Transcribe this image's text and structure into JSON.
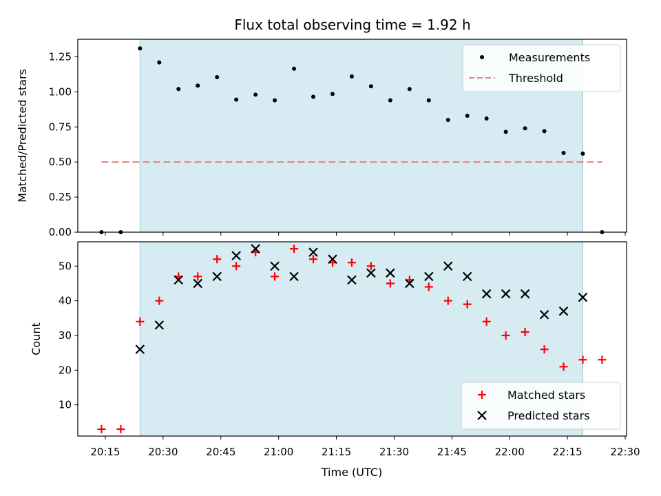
{
  "chart_data": [
    {
      "type": "scatter",
      "title": "Flux total observing time = 1.92 h",
      "xlabel": "",
      "ylabel": "Matched/Predicted stars",
      "ylim": [
        0,
        1.375
      ],
      "yticks": [
        "0.00",
        "0.25",
        "0.50",
        "0.75",
        "1.00",
        "1.25"
      ],
      "highlight_span": {
        "start": "20:24",
        "end": "22:19",
        "color": "#add8e6"
      },
      "threshold": {
        "y": 0.5,
        "x_start": "20:14",
        "x_end": "22:24",
        "color": "#f08080"
      },
      "legend_position": "upper right",
      "series": [
        {
          "name": "Measurements",
          "color": "#000000",
          "marker": "dot",
          "x": [
            "20:14",
            "20:19",
            "20:24",
            "20:29",
            "20:34",
            "20:39",
            "20:44",
            "20:49",
            "20:54",
            "20:59",
            "21:04",
            "21:09",
            "21:14",
            "21:19",
            "21:24",
            "21:29",
            "21:34",
            "21:39",
            "21:44",
            "21:49",
            "21:54",
            "21:59",
            "22:04",
            "22:09",
            "22:14",
            "22:19",
            "22:24"
          ],
          "values": [
            0,
            0,
            1.31,
            1.21,
            1.02,
            1.045,
            1.105,
            0.945,
            0.98,
            0.94,
            1.165,
            0.965,
            0.985,
            1.11,
            1.04,
            0.94,
            1.02,
            0.94,
            0.8,
            0.83,
            0.81,
            0.715,
            0.74,
            0.72,
            0.565,
            0.56,
            0
          ]
        }
      ],
      "legend": [
        {
          "label": "Measurements",
          "kind": "dot"
        },
        {
          "label": "Threshold",
          "kind": "dashed"
        }
      ]
    },
    {
      "type": "scatter",
      "xlabel": "Time (UTC)",
      "ylabel": "Count",
      "ylim": [
        1,
        57
      ],
      "yticks": [
        "10",
        "20",
        "30",
        "40",
        "50"
      ],
      "xticks": [
        "20:15",
        "20:30",
        "20:45",
        "21:00",
        "21:15",
        "21:30",
        "21:45",
        "22:00",
        "22:15",
        "22:30"
      ],
      "highlight_span": {
        "start": "20:24",
        "end": "22:19",
        "color": "#add8e6"
      },
      "legend_position": "lower right",
      "series": [
        {
          "name": "Matched stars",
          "color": "#ff0000",
          "marker": "plus",
          "x": [
            "20:14",
            "20:19",
            "20:24",
            "20:29",
            "20:34",
            "20:39",
            "20:44",
            "20:49",
            "20:54",
            "20:59",
            "21:04",
            "21:09",
            "21:14",
            "21:19",
            "21:24",
            "21:29",
            "21:34",
            "21:39",
            "21:44",
            "21:49",
            "21:54",
            "21:59",
            "22:04",
            "22:09",
            "22:14",
            "22:19",
            "22:24"
          ],
          "values": [
            3,
            3,
            34,
            40,
            47,
            47,
            52,
            50,
            54,
            47,
            55,
            52,
            51,
            51,
            50,
            45,
            46,
            44,
            40,
            39,
            34,
            30,
            31,
            26,
            21,
            23,
            23
          ]
        },
        {
          "name": "Predicted stars",
          "color": "#000000",
          "marker": "x",
          "x": [
            "20:24",
            "20:29",
            "20:34",
            "20:39",
            "20:44",
            "20:49",
            "20:54",
            "20:59",
            "21:04",
            "21:09",
            "21:14",
            "21:19",
            "21:24",
            "21:29",
            "21:34",
            "21:39",
            "21:44",
            "21:49",
            "21:54",
            "21:59",
            "22:04",
            "22:09",
            "22:14",
            "22:19"
          ],
          "values": [
            26,
            33,
            46,
            45,
            47,
            53,
            55,
            50,
            47,
            54,
            52,
            46,
            48,
            48,
            45,
            47,
            50,
            47,
            42,
            42,
            42,
            36,
            37,
            41
          ]
        }
      ],
      "legend": [
        {
          "label": "Matched stars",
          "kind": "plus"
        },
        {
          "label": "Predicted stars",
          "kind": "x"
        }
      ]
    }
  ]
}
